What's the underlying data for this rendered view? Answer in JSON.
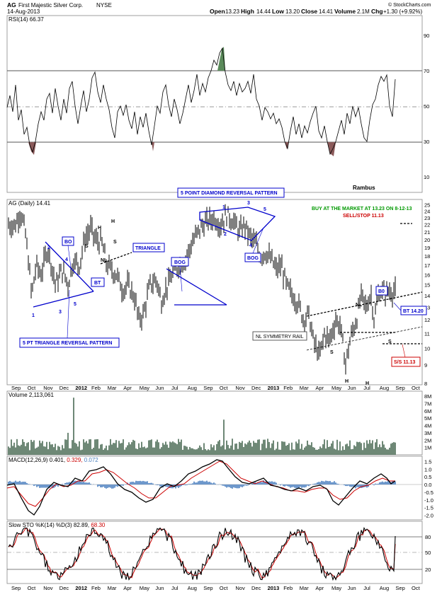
{
  "header": {
    "ticker": "AG",
    "company": "First Majestic Silver Corp.",
    "exchange": "NYSE",
    "date": "14-Aug-2013",
    "open_label": "Open",
    "open": "13.23",
    "high_label": "High",
    "high": "14.44",
    "low_label": "Low",
    "low": "13.20",
    "close_label": "Close",
    "close": "14.41",
    "volume_label": "Volume",
    "volume": "2.1M",
    "chg_label": "Chg",
    "chg": "+1.30 (+9.92%)",
    "copyright": "© StockCharts.com"
  },
  "panels": {
    "rsi": {
      "label": "RSI(14) 66.37",
      "ticks": [
        "90",
        "70",
        "50",
        "30",
        "10"
      ],
      "watermark": "Rambus"
    },
    "price": {
      "label": "AG (Daily) 14.41",
      "ticks": [
        "25",
        "24",
        "23",
        "22",
        "21",
        "20",
        "19",
        "18",
        "17",
        "16",
        "15",
        "14",
        "13",
        "12",
        "11",
        "10",
        "9",
        "8"
      ]
    },
    "volume": {
      "label": "Volume 2,113,061",
      "ticks": [
        "8M",
        "7M",
        "6M",
        "5M",
        "4M",
        "3M",
        "2M",
        "1M"
      ]
    },
    "macd": {
      "label_main": "MACD(12,26,9) 0.401,",
      "label_signal": " 0.329,",
      "label_hist": " 0.072",
      "ticks": [
        "1.5",
        "1.0",
        "0.5",
        "0.0",
        "-0.5",
        "-1.0",
        "-1.5",
        "-2.0"
      ]
    },
    "sto": {
      "label_main": "Slow STO %K(14) %D(3) 82.89,",
      "label_d": " 68.30",
      "ticks": [
        "80",
        "50",
        "20"
      ]
    }
  },
  "x_axis": [
    "Sep",
    "Oct",
    "Nov",
    "Dec",
    "2012",
    "Feb",
    "Mar",
    "Apr",
    "May",
    "Jun",
    "Jul",
    "Aug",
    "Sep",
    "Oct",
    "Nov",
    "Dec",
    "2013",
    "Feb",
    "Mar",
    "Apr",
    "May",
    "Jun",
    "Jul",
    "Aug",
    "Sep",
    "Oct"
  ],
  "annotations": {
    "triangle_reversal_label": "5 PT TRIANGLE REVERSAL PATTERN",
    "diamond_label": "5 POINT DIAMOND REVERSAL PATTERN",
    "triangle_label": "TRIANGLE",
    "bo": "BO",
    "bt": "BT",
    "bog": "BOG",
    "bog2": "BOG",
    "nl": "NL",
    "nl2": "NL",
    "h": "H",
    "s": "S",
    "buy": "BUY AT THE MARKET AT 13.23 ON 8-12-13",
    "sell": "SELL/STOP 11.13",
    "symmetry": "NL SYMMETRY RAIL",
    "ss": "S/S 11.13",
    "bt2": "BT 14.20",
    "b0": "B0",
    "nums": [
      "1",
      "2",
      "3",
      "4",
      "5"
    ]
  },
  "colors": {
    "price_bars": "#000000",
    "pattern_lines": "#0000cc",
    "annotation_text": "#0000cc",
    "buy_text": "#009900",
    "sell_text": "#cc0000",
    "rsi_overbought_fill": "#5a8a5a",
    "rsi_oversold_fill": "#8b5a5a",
    "volume_bars": "#4a6a55",
    "macd_hist": "#4a7fbf",
    "macd_signal": "#cc0000",
    "sto_d": "#cc0000"
  },
  "chart_data": [
    {
      "type": "line",
      "title": "RSI(14) 66.37",
      "ylim": [
        0,
        100
      ],
      "y_ticks": [
        90,
        70,
        50,
        30,
        10
      ],
      "reference_lines": [
        70,
        50,
        30
      ],
      "last_value": 66.37,
      "x": [
        "Sep",
        "Oct",
        "Nov",
        "Dec",
        "2012",
        "Feb",
        "Mar",
        "Apr",
        "May",
        "Jun",
        "Jul",
        "Aug",
        "Sep",
        "Oct",
        "Nov",
        "Dec",
        "2013",
        "Feb",
        "Mar",
        "Apr",
        "May",
        "Jun",
        "Jul",
        "Aug"
      ],
      "values": [
        55,
        38,
        60,
        45,
        58,
        66,
        52,
        40,
        30,
        45,
        55,
        62,
        84,
        58,
        66,
        48,
        44,
        40,
        35,
        28,
        38,
        40,
        60,
        66
      ]
    },
    {
      "type": "bar",
      "title": "AG (Daily) 14.41",
      "ylim": [
        8,
        25
      ],
      "scale": "log",
      "last_close": 14.41,
      "x": [
        "Sep",
        "Oct",
        "Nov",
        "Dec",
        "2012",
        "Feb",
        "Mar",
        "Apr",
        "May",
        "Jun",
        "Jul",
        "Aug",
        "Sep",
        "Oct",
        "Nov",
        "Dec",
        "2013",
        "Feb",
        "Mar",
        "Apr",
        "May",
        "Jun",
        "Jul",
        "Aug"
      ],
      "close": [
        23,
        15,
        18,
        15.5,
        18,
        20,
        17.5,
        15.5,
        13,
        15,
        14,
        17.5,
        23,
        23.5,
        22,
        21,
        20,
        19,
        16,
        13.5,
        10,
        11,
        9.5,
        14.4
      ]
    },
    {
      "type": "bar",
      "title": "Volume 2,113,061",
      "ylim": [
        0,
        8000000
      ],
      "last_value": 2113061
    },
    {
      "type": "line",
      "title": "MACD(12,26,9) 0.401, 0.329, 0.072",
      "ylim": [
        -2.0,
        1.5
      ],
      "series": [
        {
          "name": "MACD(12,26,9)",
          "last": 0.401
        },
        {
          "name": "Signal",
          "last": 0.329
        },
        {
          "name": "Histogram",
          "last": 0.072
        }
      ]
    },
    {
      "type": "line",
      "title": "Slow STO %K(14) %D(3) 82.89, 68.30",
      "ylim": [
        0,
        100
      ],
      "reference_lines": [
        80,
        50,
        20
      ],
      "series": [
        {
          "name": "%K",
          "last": 82.89
        },
        {
          "name": "%D",
          "last": 68.3
        }
      ]
    }
  ]
}
